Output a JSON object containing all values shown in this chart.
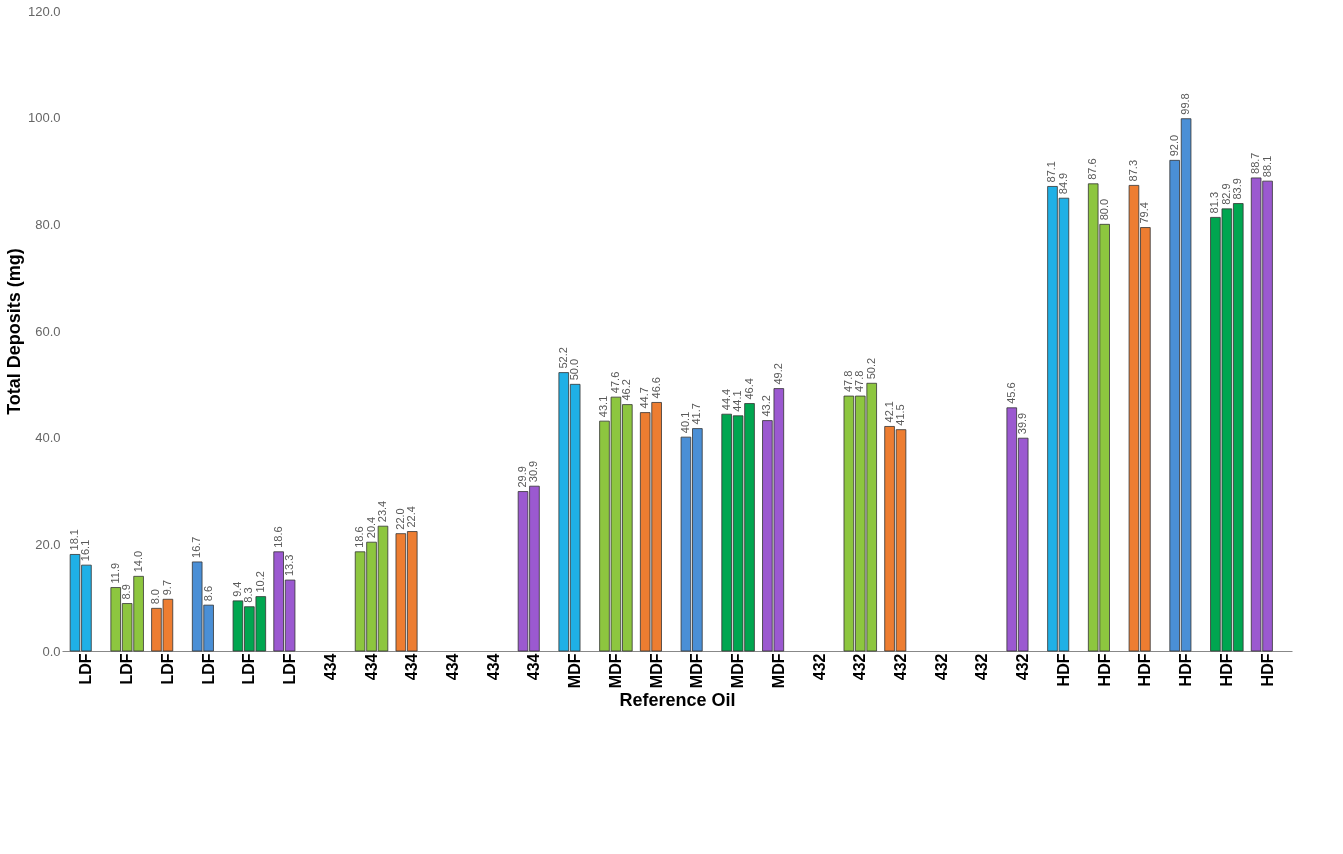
{
  "chart_data": {
    "type": "bar",
    "xlabel": "Reference Oil",
    "ylabel": "Total Deposits (mg)",
    "categories": [
      "LDF",
      "LDF",
      "LDF",
      "LDF",
      "LDF",
      "LDF",
      "434",
      "434",
      "434",
      "434",
      "434",
      "434",
      "MDF",
      "MDF",
      "MDF",
      "MDF",
      "MDF",
      "MDF",
      "432",
      "432",
      "432",
      "432",
      "432",
      "432",
      "HDF",
      "HDF",
      "HDF",
      "HDF",
      "HDF",
      "HDF"
    ],
    "series": [
      {
        "colors": [
          "#1fb0e6",
          "#8dc63f",
          "#ed7d31",
          "#4a8fd6",
          "#00a650",
          "#9b59d0",
          "#1fb0e6",
          "#8dc63f",
          "#ed7d31",
          "#4a8fd6",
          "#00a650",
          "#9b59d0",
          "#1fb0e6",
          "#8dc63f",
          "#ed7d31",
          "#4a8fd6",
          "#00a650",
          "#9b59d0",
          "#1fb0e6",
          "#8dc63f",
          "#ed7d31",
          "#4a8fd6",
          "#00a650",
          "#9b59d0",
          "#1fb0e6",
          "#8dc63f",
          "#ed7d31",
          "#4a8fd6",
          "#00a650",
          "#9b59d0"
        ],
        "values": [
          18.1,
          11.9,
          8.0,
          16.7,
          9.4,
          18.6,
          null,
          18.6,
          22.0,
          null,
          null,
          29.9,
          52.2,
          43.1,
          44.7,
          40.1,
          44.4,
          43.2,
          null,
          47.8,
          42.1,
          null,
          null,
          45.6,
          87.1,
          87.6,
          87.3,
          92.0,
          81.3,
          88.7
        ],
        "value_labels": [
          "18.1",
          "11.9",
          "8.0",
          "16.7",
          "9.4",
          "18.6",
          null,
          "18.6",
          "22.0",
          null,
          null,
          "29.9",
          "52.2",
          "43.1",
          "44.7",
          "40.1",
          "44.4",
          "43.2",
          null,
          "47.8",
          "42.1",
          null,
          null,
          "45.6",
          "87.1",
          "87.6",
          "87.3",
          "92.0",
          "81.3",
          "88.7"
        ]
      },
      {
        "colors": [
          "#1fb0e6",
          "#8dc63f",
          "#ed7d31",
          "#4a8fd6",
          "#00a650",
          "#9b59d0",
          "#1fb0e6",
          "#8dc63f",
          "#ed7d31",
          "#4a8fd6",
          "#00a650",
          "#9b59d0",
          "#1fb0e6",
          "#8dc63f",
          "#ed7d31",
          "#4a8fd6",
          "#00a650",
          "#9b59d0",
          "#1fb0e6",
          "#8dc63f",
          "#ed7d31",
          "#4a8fd6",
          "#00a650",
          "#9b59d0",
          "#1fb0e6",
          "#8dc63f",
          "#ed7d31",
          "#4a8fd6",
          "#00a650",
          "#9b59d0"
        ],
        "values": [
          16.1,
          8.9,
          9.7,
          8.6,
          8.3,
          13.3,
          null,
          20.4,
          22.4,
          null,
          null,
          30.9,
          50.0,
          47.6,
          46.6,
          41.7,
          44.1,
          49.2,
          null,
          47.8,
          41.5,
          null,
          null,
          39.9,
          84.9,
          80.0,
          79.4,
          99.8,
          82.9,
          88.1
        ],
        "value_labels": [
          "16.1",
          "8.9",
          "9.7",
          "8.6",
          "8.3",
          "13.3",
          null,
          "20.4",
          "22.4",
          null,
          null,
          "30.9",
          "50.0",
          "47.6",
          "46.6",
          "41.7",
          "44.1",
          "49.2",
          null,
          "47.8",
          "41.5",
          null,
          null,
          "39.9",
          "84.9",
          "80.0",
          "79.4",
          "99.8",
          "82.9",
          "88.1"
        ]
      },
      {
        "colors": [
          "#1fb0e6",
          "#8dc63f",
          "#ed7d31",
          "#4a8fd6",
          "#00a650",
          "#9b59d0",
          "#1fb0e6",
          "#8dc63f",
          "#ed7d31",
          "#4a8fd6",
          "#00a650",
          "#9b59d0",
          "#1fb0e6",
          "#8dc63f",
          "#ed7d31",
          "#4a8fd6",
          "#00a650",
          "#9b59d0",
          "#1fb0e6",
          "#8dc63f",
          "#ed7d31",
          "#4a8fd6",
          "#00a650",
          "#9b59d0",
          "#1fb0e6",
          "#8dc63f",
          "#ed7d31",
          "#4a8fd6",
          "#00a650",
          "#9b59d0"
        ],
        "values": [
          null,
          14.0,
          null,
          null,
          10.2,
          null,
          null,
          23.4,
          null,
          null,
          null,
          null,
          null,
          46.2,
          null,
          null,
          46.4,
          null,
          null,
          50.2,
          null,
          null,
          null,
          null,
          null,
          null,
          null,
          null,
          83.9,
          null
        ],
        "value_labels": [
          null,
          "14.0",
          null,
          null,
          "10.2",
          null,
          null,
          "23.4",
          null,
          null,
          null,
          null,
          null,
          "46.2",
          null,
          null,
          "46.4",
          null,
          null,
          "50.2",
          null,
          null,
          null,
          null,
          null,
          null,
          null,
          null,
          "83.9",
          null
        ]
      }
    ],
    "ylim": [
      0,
      120
    ],
    "yticks": [
      {
        "value": 0,
        "label": "0.0"
      },
      {
        "value": 20,
        "label": "20.0"
      },
      {
        "value": 40,
        "label": "40.0"
      },
      {
        "value": 60,
        "label": "60.0"
      },
      {
        "value": 80,
        "label": "80.0"
      },
      {
        "value": 100,
        "label": "100.0"
      },
      {
        "value": 120,
        "label": "120.0"
      }
    ],
    "grid": false
  }
}
